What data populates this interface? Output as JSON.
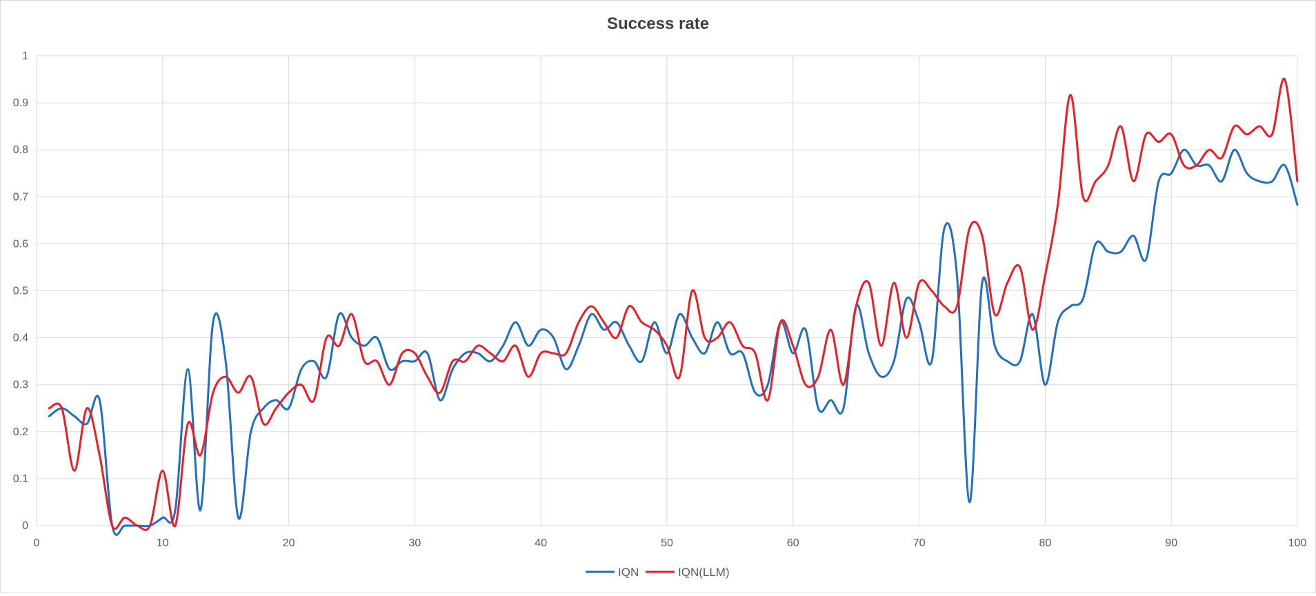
{
  "chart_data": {
    "type": "line",
    "title": "Success rate",
    "xlabel": "",
    "ylabel": "",
    "xlim": [
      0,
      100
    ],
    "ylim": [
      0,
      1
    ],
    "x_ticks": [
      "0",
      "10",
      "20",
      "30",
      "40",
      "50",
      "60",
      "70",
      "80",
      "90",
      "100"
    ],
    "y_ticks": [
      "0",
      "0.1",
      "0.2",
      "0.3",
      "0.4",
      "0.5",
      "0.6",
      "0.7",
      "0.8",
      "0.9",
      "1"
    ],
    "grid": true,
    "legend_position": "bottom",
    "series": [
      {
        "name": "IQN",
        "color": "#1f6fc1",
        "x": [
          1,
          2,
          3,
          4,
          5,
          6,
          7,
          8,
          9,
          10,
          11,
          12,
          13,
          14,
          15,
          16,
          17,
          18,
          19,
          20,
          21,
          22,
          23,
          24,
          25,
          26,
          27,
          28,
          29,
          30,
          31,
          32,
          33,
          34,
          35,
          36,
          37,
          38,
          39,
          40,
          41,
          42,
          43,
          44,
          45,
          46,
          47,
          48,
          49,
          50,
          51,
          52,
          53,
          54,
          55,
          56,
          57,
          58,
          59,
          60,
          61,
          62,
          63,
          64,
          65,
          66,
          67,
          68,
          69,
          70,
          71,
          72,
          73,
          74,
          75,
          76,
          77,
          78,
          79,
          80,
          81,
          82,
          83,
          84,
          85,
          86,
          87,
          88,
          89,
          90,
          91,
          92,
          93,
          94,
          95,
          96,
          97,
          98,
          99,
          100
        ],
        "values": [
          0.233,
          0.25,
          0.233,
          0.217,
          0.267,
          0.0,
          0.0,
          0.0,
          0.0,
          0.017,
          0.033,
          0.333,
          0.033,
          0.433,
          0.35,
          0.017,
          0.2,
          0.25,
          0.267,
          0.25,
          0.333,
          0.35,
          0.317,
          0.45,
          0.4,
          0.383,
          0.4,
          0.333,
          0.35,
          0.35,
          0.367,
          0.267,
          0.333,
          0.367,
          0.367,
          0.35,
          0.383,
          0.433,
          0.383,
          0.417,
          0.4,
          0.333,
          0.383,
          0.45,
          0.417,
          0.433,
          0.383,
          0.35,
          0.433,
          0.367,
          0.45,
          0.4,
          0.367,
          0.433,
          0.367,
          0.367,
          0.283,
          0.3,
          0.433,
          0.367,
          0.417,
          0.25,
          0.267,
          0.25,
          0.467,
          0.367,
          0.317,
          0.35,
          0.483,
          0.433,
          0.35,
          0.633,
          0.533,
          0.05,
          0.517,
          0.383,
          0.35,
          0.35,
          0.45,
          0.3,
          0.433,
          0.467,
          0.483,
          0.6,
          0.583,
          0.583,
          0.617,
          0.567,
          0.733,
          0.75,
          0.8,
          0.767,
          0.767,
          0.733,
          0.8,
          0.75,
          0.733,
          0.733,
          0.767,
          0.683
        ]
      },
      {
        "name": "IQN(LLM)",
        "color": "#ee1c25",
        "x": [
          1,
          2,
          3,
          4,
          5,
          6,
          7,
          8,
          9,
          10,
          11,
          12,
          13,
          14,
          15,
          16,
          17,
          18,
          19,
          20,
          21,
          22,
          23,
          24,
          25,
          26,
          27,
          28,
          29,
          30,
          31,
          32,
          33,
          34,
          35,
          36,
          37,
          38,
          39,
          40,
          41,
          42,
          43,
          44,
          45,
          46,
          47,
          48,
          49,
          50,
          51,
          52,
          53,
          54,
          55,
          56,
          57,
          58,
          59,
          60,
          61,
          62,
          63,
          64,
          65,
          66,
          67,
          68,
          69,
          70,
          71,
          72,
          73,
          74,
          75,
          76,
          77,
          78,
          79,
          80,
          81,
          82,
          83,
          84,
          85,
          86,
          87,
          88,
          89,
          90,
          91,
          92,
          93,
          94,
          95,
          96,
          97,
          98,
          99,
          100
        ],
        "values": [
          0.25,
          0.25,
          0.117,
          0.25,
          0.15,
          0.0,
          0.017,
          0.0,
          0.0,
          0.117,
          0.0,
          0.217,
          0.15,
          0.283,
          0.317,
          0.283,
          0.317,
          0.217,
          0.25,
          0.283,
          0.3,
          0.267,
          0.4,
          0.383,
          0.45,
          0.35,
          0.35,
          0.3,
          0.367,
          0.367,
          0.317,
          0.283,
          0.35,
          0.35,
          0.383,
          0.367,
          0.35,
          0.383,
          0.317,
          0.367,
          0.367,
          0.367,
          0.433,
          0.467,
          0.433,
          0.4,
          0.467,
          0.433,
          0.417,
          0.383,
          0.317,
          0.5,
          0.4,
          0.4,
          0.433,
          0.383,
          0.367,
          0.267,
          0.433,
          0.383,
          0.3,
          0.317,
          0.417,
          0.3,
          0.467,
          0.517,
          0.383,
          0.517,
          0.4,
          0.517,
          0.5,
          0.467,
          0.467,
          0.633,
          0.617,
          0.45,
          0.517,
          0.55,
          0.417,
          0.533,
          0.683,
          0.917,
          0.7,
          0.733,
          0.767,
          0.85,
          0.733,
          0.833,
          0.817,
          0.833,
          0.767,
          0.767,
          0.8,
          0.783,
          0.85,
          0.833,
          0.85,
          0.833,
          0.95,
          0.733
        ]
      }
    ]
  }
}
